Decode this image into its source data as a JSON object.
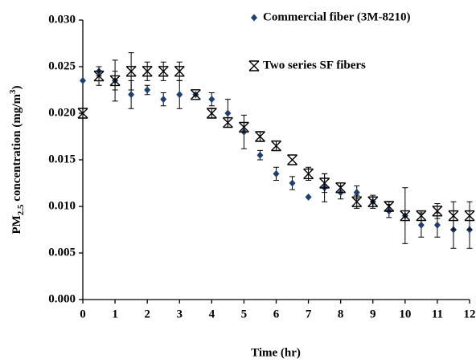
{
  "chart_data": {
    "type": "scatter",
    "xlabel": "Time (hr)",
    "ylabel": [
      "PM",
      "2.5",
      " concentration (mg/m",
      "3",
      ")"
    ],
    "xlim": [
      0,
      12
    ],
    "xticks": [
      0,
      1,
      2,
      3,
      4,
      5,
      6,
      7,
      8,
      9,
      10,
      11,
      12
    ],
    "ylim": [
      0,
      0.03
    ],
    "yticks": [
      {
        "value": 0,
        "label": "0.000"
      },
      {
        "value": 0.005,
        "label": "0.005"
      },
      {
        "value": 0.01,
        "label": "0.010"
      },
      {
        "value": 0.015,
        "label": "0.015"
      },
      {
        "value": 0.02,
        "label": "0.020"
      },
      {
        "value": 0.025,
        "label": "0.025"
      },
      {
        "value": 0.03,
        "label": "0.030"
      }
    ],
    "grid": false,
    "legend": "upper right",
    "x": [
      0,
      0.5,
      1,
      1.5,
      2,
      2.5,
      3,
      3.5,
      4,
      4.5,
      5,
      5.5,
      6,
      6.5,
      7,
      7.5,
      8,
      8.5,
      9,
      9.5,
      10,
      10.5,
      11,
      11.5,
      12
    ],
    "series": [
      {
        "name": "Commercial fiber (3M-8210)",
        "marker": "diamond",
        "color": "#1f3f6e",
        "values": [
          0.0235,
          0.0245,
          0.0235,
          0.022,
          0.0225,
          0.0215,
          0.022,
          0.022,
          0.0215,
          0.02,
          0.018,
          0.0155,
          0.0135,
          0.0125,
          0.011,
          0.012,
          0.0115,
          0.0115,
          0.0105,
          0.0095,
          0.009,
          0.008,
          0.008,
          0.0075,
          0.0075
        ],
        "errors": [
          0,
          0.0005,
          0.001,
          0.0015,
          0.0005,
          0.0007,
          0.0015,
          0,
          0.0007,
          0.0015,
          0.0018,
          0.0005,
          0.0007,
          0.0007,
          0,
          0.0015,
          0.0007,
          0.0007,
          0.0007,
          0.0007,
          0,
          0.0013,
          0.0013,
          0.002,
          0.002
        ]
      },
      {
        "name": "Two series SF fibers",
        "marker": "asterisk",
        "color": "#000000",
        "values": [
          0.02,
          0.024,
          0.0235,
          0.0245,
          0.0245,
          0.0245,
          0.0245,
          0.022,
          0.02,
          0.019,
          0.0185,
          0.0175,
          0.0165,
          0.015,
          0.0135,
          0.0125,
          0.012,
          0.0105,
          0.0105,
          0.01,
          0.009,
          0.009,
          0.0095,
          0.009,
          0.009
        ],
        "errors": [
          0,
          0.001,
          0.0022,
          0.002,
          0.001,
          0.001,
          0.001,
          0,
          0.0005,
          0.0005,
          0.0005,
          0.0005,
          0.0005,
          0,
          0.0007,
          0.001,
          0.0005,
          0.0007,
          0.0005,
          0.0005,
          0.003,
          0.0005,
          0.0008,
          0.0015,
          0.0015
        ]
      }
    ]
  }
}
